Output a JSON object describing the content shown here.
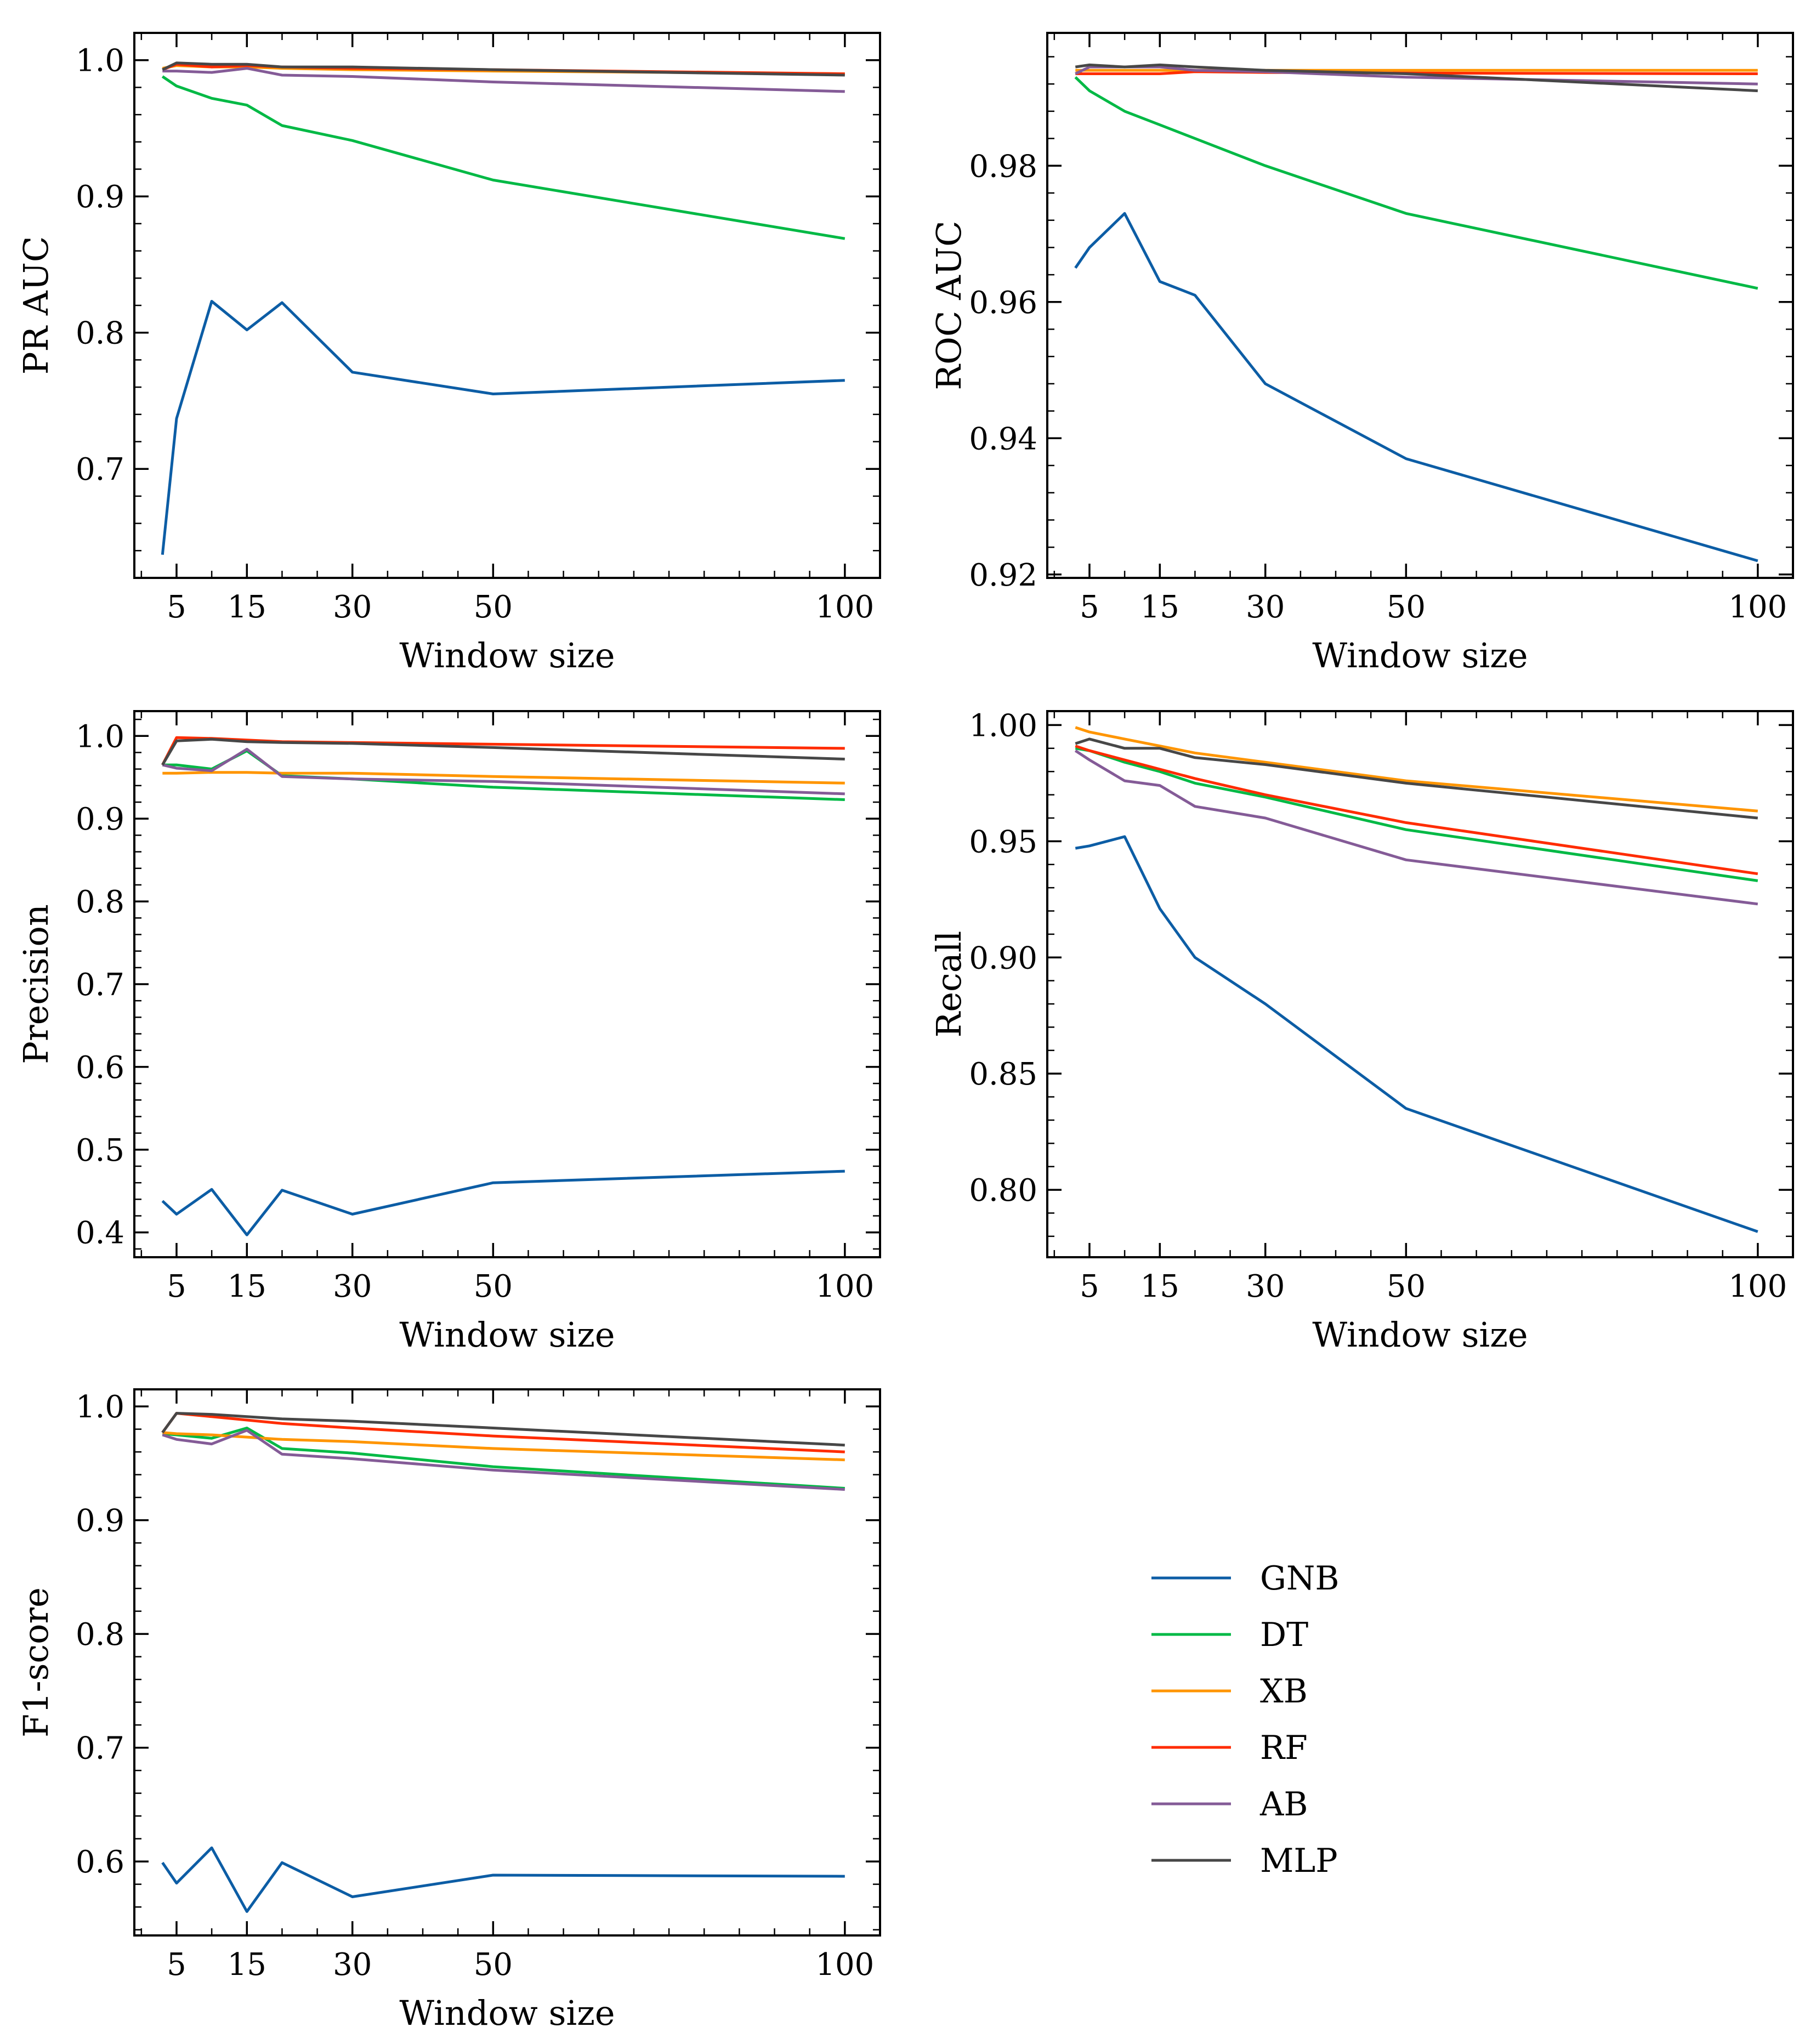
{
  "chart_data": [
    {
      "type": "line",
      "title": "",
      "xlabel": "Window size",
      "ylabel": "PR AUC",
      "xlim": [
        -1,
        105
      ],
      "ylim": [
        0.62,
        1.02
      ],
      "xticks": [
        5,
        15,
        30,
        50,
        100
      ],
      "yticks": [
        0.7,
        0.8,
        0.9,
        1.0
      ],
      "ytick_labels": [
        "0.7",
        "0.8",
        "0.9",
        "1.0"
      ],
      "x": [
        3,
        5,
        10,
        15,
        20,
        30,
        50,
        100
      ],
      "series": [
        {
          "name": "GNB",
          "values": [
            0.637,
            0.737,
            0.823,
            0.802,
            0.822,
            0.771,
            0.755,
            0.765
          ]
        },
        {
          "name": "DT",
          "values": [
            0.988,
            0.981,
            0.972,
            0.967,
            0.952,
            0.941,
            0.912,
            0.869
          ]
        },
        {
          "name": "XB",
          "values": [
            0.994,
            0.996,
            0.995,
            0.995,
            0.994,
            0.993,
            0.992,
            0.99
          ]
        },
        {
          "name": "RF",
          "values": [
            0.993,
            0.997,
            0.995,
            0.996,
            0.995,
            0.994,
            0.993,
            0.99
          ]
        },
        {
          "name": "AB",
          "values": [
            0.992,
            0.992,
            0.991,
            0.994,
            0.989,
            0.988,
            0.984,
            0.977
          ]
        },
        {
          "name": "MLP",
          "values": [
            0.993,
            0.998,
            0.997,
            0.997,
            0.995,
            0.995,
            0.993,
            0.989
          ]
        }
      ]
    },
    {
      "type": "line",
      "title": "",
      "xlabel": "Window size",
      "ylabel": "ROC AUC",
      "xlim": [
        -1,
        105
      ],
      "ylim": [
        0.9195,
        0.9995
      ],
      "xticks": [
        5,
        15,
        30,
        50,
        100
      ],
      "yticks": [
        0.92,
        0.94,
        0.96,
        0.98
      ],
      "ytick_labels": [
        "0.92",
        "0.94",
        "0.96",
        "0.98"
      ],
      "x": [
        3,
        5,
        10,
        15,
        20,
        30,
        50,
        100
      ],
      "series": [
        {
          "name": "GNB",
          "values": [
            0.965,
            0.968,
            0.973,
            0.963,
            0.961,
            0.948,
            0.937,
            0.922
          ]
        },
        {
          "name": "DT",
          "values": [
            0.993,
            0.991,
            0.988,
            0.986,
            0.984,
            0.98,
            0.973,
            0.962
          ]
        },
        {
          "name": "XB",
          "values": [
            0.994,
            0.994,
            0.994,
            0.994,
            0.994,
            0.994,
            0.994,
            0.994
          ]
        },
        {
          "name": "RF",
          "values": [
            0.9935,
            0.9935,
            0.9935,
            0.9935,
            0.9938,
            0.9937,
            0.9936,
            0.9935
          ]
        },
        {
          "name": "AB",
          "values": [
            0.9935,
            0.9945,
            0.9945,
            0.9945,
            0.994,
            0.9938,
            0.993,
            0.992
          ]
        },
        {
          "name": "MLP",
          "values": [
            0.9945,
            0.9948,
            0.9945,
            0.9948,
            0.9945,
            0.994,
            0.9935,
            0.991
          ]
        }
      ]
    },
    {
      "type": "line",
      "title": "",
      "xlabel": "Window size",
      "ylabel": "Precision",
      "xlim": [
        -1,
        105
      ],
      "ylim": [
        0.37,
        1.03
      ],
      "xticks": [
        5,
        15,
        30,
        50,
        100
      ],
      "yticks": [
        0.4,
        0.5,
        0.6,
        0.7,
        0.8,
        0.9,
        1.0
      ],
      "ytick_labels": [
        "0.4",
        "0.5",
        "0.6",
        "0.7",
        "0.8",
        "0.9",
        "1.0"
      ],
      "x": [
        3,
        5,
        10,
        15,
        20,
        30,
        50,
        100
      ],
      "series": [
        {
          "name": "GNB",
          "values": [
            0.438,
            0.422,
            0.452,
            0.397,
            0.451,
            0.422,
            0.46,
            0.474
          ]
        },
        {
          "name": "DT",
          "values": [
            0.965,
            0.965,
            0.96,
            0.982,
            0.952,
            0.948,
            0.938,
            0.923
          ]
        },
        {
          "name": "XB",
          "values": [
            0.955,
            0.955,
            0.956,
            0.956,
            0.955,
            0.955,
            0.951,
            0.943
          ]
        },
        {
          "name": "RF",
          "values": [
            0.965,
            0.998,
            0.997,
            0.995,
            0.993,
            0.992,
            0.99,
            0.985
          ]
        },
        {
          "name": "AB",
          "values": [
            0.965,
            0.961,
            0.958,
            0.984,
            0.951,
            0.948,
            0.945,
            0.93
          ]
        },
        {
          "name": "MLP",
          "values": [
            0.965,
            0.994,
            0.996,
            0.993,
            0.992,
            0.991,
            0.986,
            0.972
          ]
        }
      ]
    },
    {
      "type": "line",
      "title": "",
      "xlabel": "Window size",
      "ylabel": "Recall",
      "xlim": [
        -1,
        105
      ],
      "ylim": [
        0.771,
        1.006
      ],
      "xticks": [
        5,
        15,
        30,
        50,
        100
      ],
      "yticks": [
        0.8,
        0.85,
        0.9,
        0.95,
        1.0
      ],
      "ytick_labels": [
        "0.80",
        "0.85",
        "0.90",
        "0.95",
        "1.00"
      ],
      "x": [
        3,
        5,
        10,
        15,
        20,
        30,
        50,
        100
      ],
      "series": [
        {
          "name": "GNB",
          "values": [
            0.947,
            0.948,
            0.952,
            0.921,
            0.9,
            0.88,
            0.835,
            0.782
          ]
        },
        {
          "name": "DT",
          "values": [
            0.99,
            0.989,
            0.984,
            0.98,
            0.975,
            0.969,
            0.955,
            0.933
          ]
        },
        {
          "name": "XB",
          "values": [
            0.999,
            0.997,
            0.994,
            0.991,
            0.988,
            0.984,
            0.976,
            0.963
          ]
        },
        {
          "name": "RF",
          "values": [
            0.991,
            0.989,
            0.985,
            0.981,
            0.977,
            0.97,
            0.958,
            0.936
          ]
        },
        {
          "name": "AB",
          "values": [
            0.989,
            0.985,
            0.976,
            0.974,
            0.965,
            0.96,
            0.942,
            0.923
          ]
        },
        {
          "name": "MLP",
          "values": [
            0.992,
            0.994,
            0.99,
            0.99,
            0.986,
            0.983,
            0.975,
            0.96
          ]
        }
      ]
    },
    {
      "type": "line",
      "title": "",
      "xlabel": "Window size",
      "ylabel": "F1-score",
      "xlim": [
        -1,
        105
      ],
      "ylim": [
        0.535,
        1.015
      ],
      "xticks": [
        5,
        15,
        30,
        50,
        100
      ],
      "yticks": [
        0.6,
        0.7,
        0.8,
        0.9,
        1.0
      ],
      "ytick_labels": [
        "0.6",
        "0.7",
        "0.8",
        "0.9",
        "1.0"
      ],
      "x": [
        3,
        5,
        10,
        15,
        20,
        30,
        50,
        100
      ],
      "series": [
        {
          "name": "GNB",
          "values": [
            0.599,
            0.581,
            0.612,
            0.556,
            0.599,
            0.569,
            0.588,
            0.587
          ]
        },
        {
          "name": "DT",
          "values": [
            0.976,
            0.975,
            0.972,
            0.981,
            0.963,
            0.959,
            0.947,
            0.928
          ]
        },
        {
          "name": "XB",
          "values": [
            0.977,
            0.976,
            0.975,
            0.973,
            0.971,
            0.969,
            0.963,
            0.953
          ]
        },
        {
          "name": "RF",
          "values": [
            0.977,
            0.994,
            0.991,
            0.988,
            0.985,
            0.981,
            0.974,
            0.96
          ]
        },
        {
          "name": "AB",
          "values": [
            0.975,
            0.971,
            0.967,
            0.979,
            0.958,
            0.954,
            0.944,
            0.927
          ]
        },
        {
          "name": "MLP",
          "values": [
            0.977,
            0.994,
            0.993,
            0.991,
            0.989,
            0.987,
            0.981,
            0.966
          ]
        }
      ]
    }
  ],
  "legend": {
    "placement": "bottom-right",
    "entries": [
      {
        "name": "GNB",
        "color": "#0C5DA5"
      },
      {
        "name": "DT",
        "color": "#00B945"
      },
      {
        "name": "XB",
        "color": "#FF9500"
      },
      {
        "name": "RF",
        "color": "#FF2C00"
      },
      {
        "name": "AB",
        "color": "#845B97"
      },
      {
        "name": "MLP",
        "color": "#474747"
      }
    ]
  }
}
